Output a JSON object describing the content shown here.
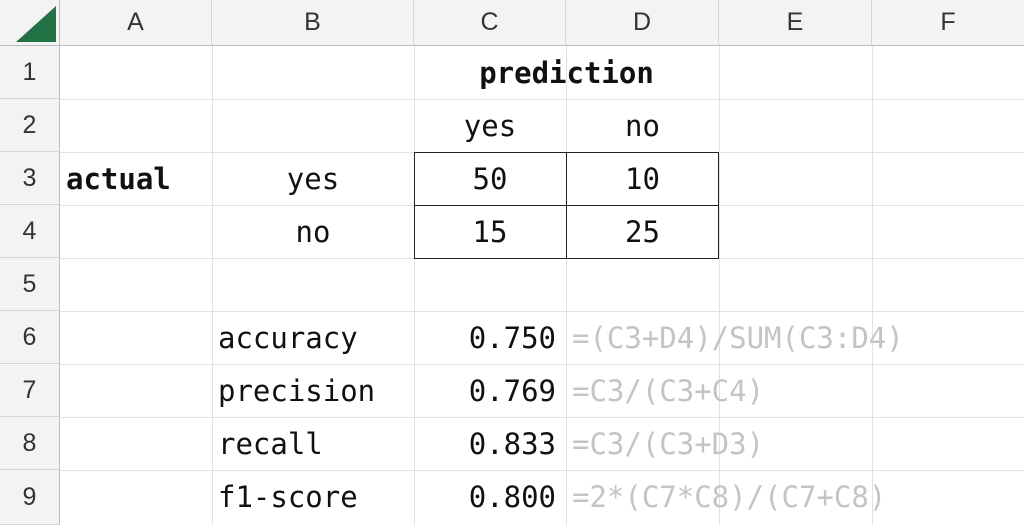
{
  "columns": [
    "A",
    "B",
    "C",
    "D",
    "E",
    "F"
  ],
  "rows": [
    "1",
    "2",
    "3",
    "4",
    "5",
    "6",
    "7",
    "8",
    "9"
  ],
  "cells": {
    "C1": "prediction",
    "C2": "yes",
    "D2": "no",
    "A3": "actual",
    "B3": "yes",
    "C3": "50",
    "D3": "10",
    "B4": "no",
    "C4": "15",
    "D4": "25",
    "B6": "accuracy",
    "C6": "0.750",
    "D6": "=(C3+D4)/SUM(C3:D4)",
    "B7": "precision",
    "C7": "0.769",
    "D7": "=C3/(C3+C4)",
    "B8": "recall",
    "C8": "0.833",
    "D8": "=C3/(C3+D3)",
    "B9": "f1-score",
    "C9": "0.800",
    "D9": "=2*(C7*C8)/(C7+C8)"
  },
  "colors": {
    "accent": "#217346",
    "grid": "#e1e1e1",
    "formula_text": "#c4c4c4",
    "header_bg": "#f3f3f3"
  }
}
